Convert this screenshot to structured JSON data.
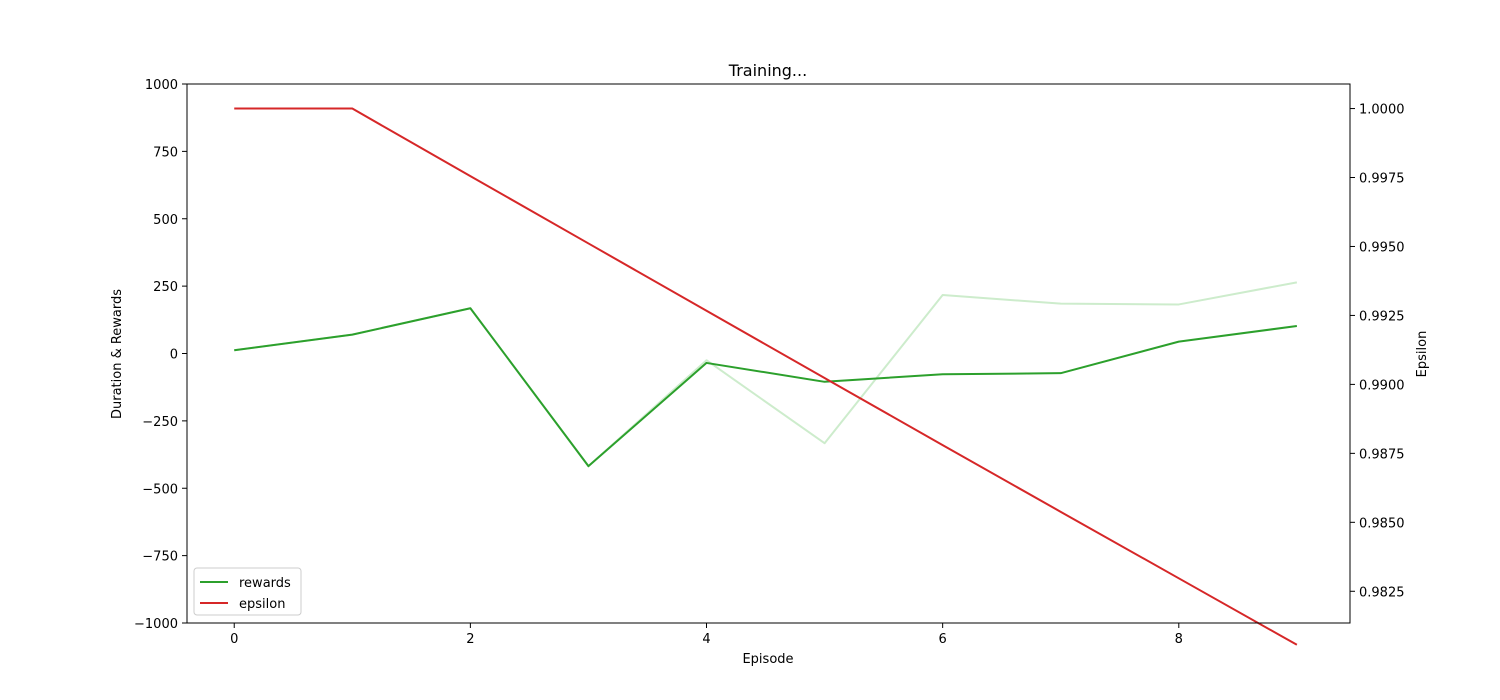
{
  "chart_data": {
    "type": "line",
    "title": "Training...",
    "xlabel": "Episode",
    "ylabel": "Duration & Rewards",
    "y2label": "Epsilon",
    "x": [
      0,
      1,
      2,
      3,
      4,
      5,
      6,
      7,
      8,
      9
    ],
    "xlim": [
      -0.4,
      9.45
    ],
    "xticks": [
      0,
      2,
      4,
      6,
      8
    ],
    "ylim": [
      -1000,
      1000
    ],
    "yticks": [
      -1000,
      -750,
      -500,
      -250,
      0,
      250,
      500,
      750,
      1000
    ],
    "y2lim": [
      0.98135,
      1.00089
    ],
    "y2ticks": [
      0.9825,
      0.985,
      0.9875,
      0.99,
      0.9925,
      0.995,
      0.9975,
      1.0
    ],
    "grid": false,
    "legend_position": "lower-left",
    "series": [
      {
        "name": "",
        "axis": "left",
        "color": "#cdeccc",
        "values": [
          12,
          70,
          168,
          -418,
          -25,
          -333,
          217,
          185,
          182,
          264
        ]
      },
      {
        "name": "rewards",
        "axis": "left",
        "color": "#2ca02c",
        "values": [
          12,
          70,
          168,
          -418,
          -35,
          -105,
          -77,
          -73,
          44,
          102
        ]
      },
      {
        "name": "epsilon",
        "axis": "right",
        "color": "#d62728",
        "values": [
          1.0,
          1.0,
          0.99755,
          0.99511,
          0.99267,
          0.99023,
          0.9878,
          0.98538,
          0.98297,
          0.98056
        ]
      }
    ]
  }
}
